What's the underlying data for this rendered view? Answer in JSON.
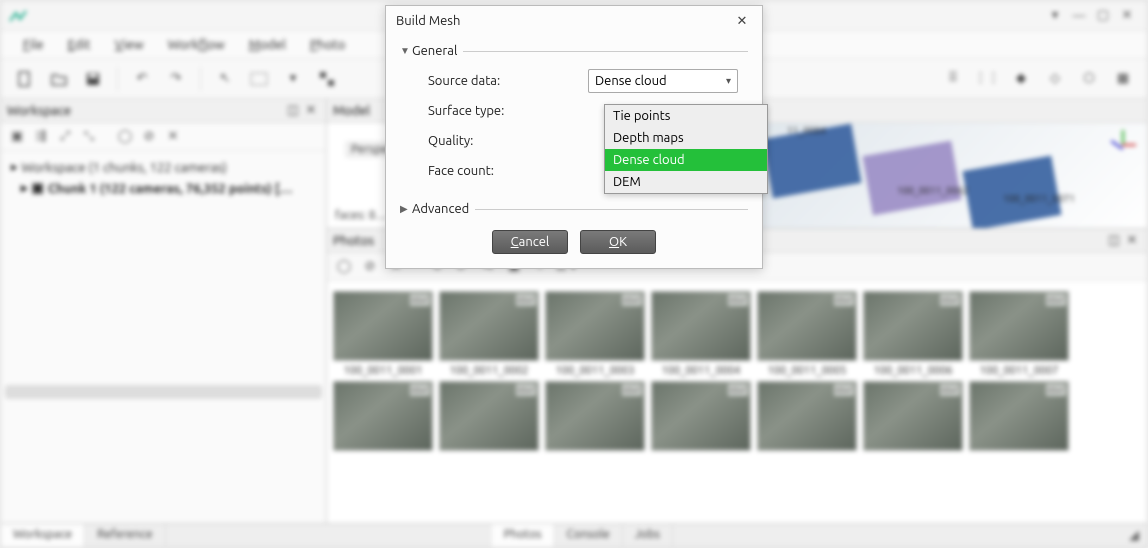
{
  "menubar": [
    "File",
    "Edit",
    "View",
    "Workflow",
    "Model",
    "Photo"
  ],
  "menubar_underline_index": [
    0,
    0,
    0,
    4,
    0,
    0
  ],
  "workspace": {
    "panel_title": "Workspace",
    "summary": "Workspace (1 chunks, 122 cameras)",
    "chunk": "Chunk 1 (122 cameras, 76,352 points) […"
  },
  "model": {
    "panel_title": "Model",
    "perspective": "Perspe…",
    "faces": "faces: 8…",
    "labels": [
      "11_0084",
      "100_0011_0062",
      "100_0011_0071"
    ]
  },
  "photos": {
    "panel_title": "Photos",
    "names": [
      "100_0011_0001",
      "100_0011_0002",
      "100_0011_0003",
      "100_0011_0004",
      "100_0011_0005",
      "100_0011_0006",
      "100_0011_0007"
    ]
  },
  "bottom_tabs_left": [
    "Workspace",
    "Reference"
  ],
  "bottom_tabs_right": [
    "Photos",
    "Console",
    "Jobs"
  ],
  "dialog": {
    "title": "Build Mesh",
    "sections": {
      "general": "General",
      "advanced": "Advanced"
    },
    "fields": {
      "source_data": "Source data:",
      "surface_type": "Surface type:",
      "quality": "Quality:",
      "face_count": "Face count:"
    },
    "combo_value": "Dense cloud",
    "options": [
      "Tie points",
      "Depth maps",
      "Dense cloud",
      "DEM"
    ],
    "selected_option": "Dense cloud",
    "buttons": {
      "cancel": "Cancel",
      "ok": "OK"
    }
  },
  "colors": {
    "highlight": "#24c03a",
    "tile_blue": "#355f9e",
    "tile_purple": "#9a8cc5"
  }
}
